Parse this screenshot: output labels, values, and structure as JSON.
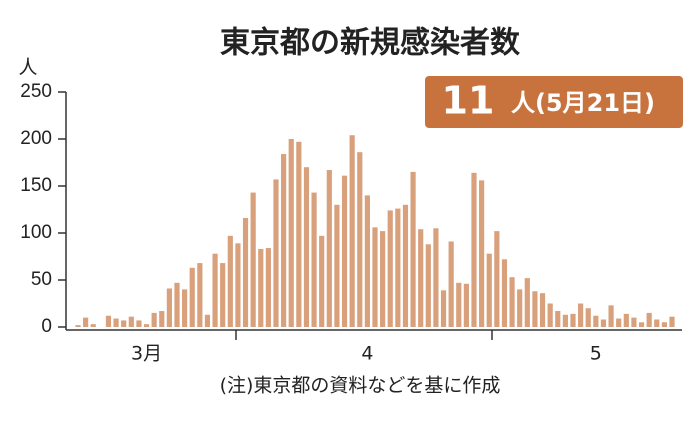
{
  "chart_data": {
    "type": "bar",
    "title": "東京都の新規感染者数",
    "y_unit": "人",
    "badge": {
      "number": "11",
      "text": "人(5月21日)"
    },
    "note": "(注)東京都の資料などを基に作成",
    "color": "#d9a07c",
    "categories": [
      null,
      null,
      null,
      null,
      null,
      null,
      null,
      null,
      null,
      "3月",
      null,
      null,
      null,
      null,
      null,
      null,
      null,
      null,
      null,
      null,
      null,
      null,
      null,
      null,
      null,
      null,
      null,
      null,
      null,
      null,
      null,
      null,
      null,
      null,
      null,
      null,
      null,
      null,
      "4",
      null,
      null,
      null,
      null,
      null,
      null,
      null,
      null,
      null,
      null,
      null,
      null,
      null,
      null,
      null,
      null,
      null,
      null,
      null,
      null,
      null,
      null,
      null,
      null,
      null,
      null,
      null,
      null,
      null,
      "5",
      null,
      null,
      null,
      null,
      null,
      null,
      null,
      null,
      null,
      null
    ],
    "values": [
      2,
      10,
      3,
      0,
      12,
      9,
      7,
      11,
      7,
      3,
      15,
      17,
      41,
      47,
      40,
      63,
      68,
      13,
      78,
      68,
      97,
      89,
      116,
      143,
      83,
      84,
      157,
      184,
      200,
      197,
      170,
      143,
      97,
      167,
      130,
      161,
      204,
      186,
      140,
      106,
      102,
      124,
      126,
      130,
      165,
      104,
      88,
      105,
      39,
      91,
      47,
      46,
      164,
      156,
      78,
      102,
      72,
      53,
      40,
      52,
      38,
      36,
      25,
      17,
      13,
      14,
      25,
      20,
      12,
      8,
      23,
      9,
      14,
      10,
      5,
      15,
      8,
      5,
      11
    ],
    "ylim": [
      0,
      250
    ],
    "yticks": [
      0,
      50,
      100,
      150,
      200,
      250
    ]
  }
}
